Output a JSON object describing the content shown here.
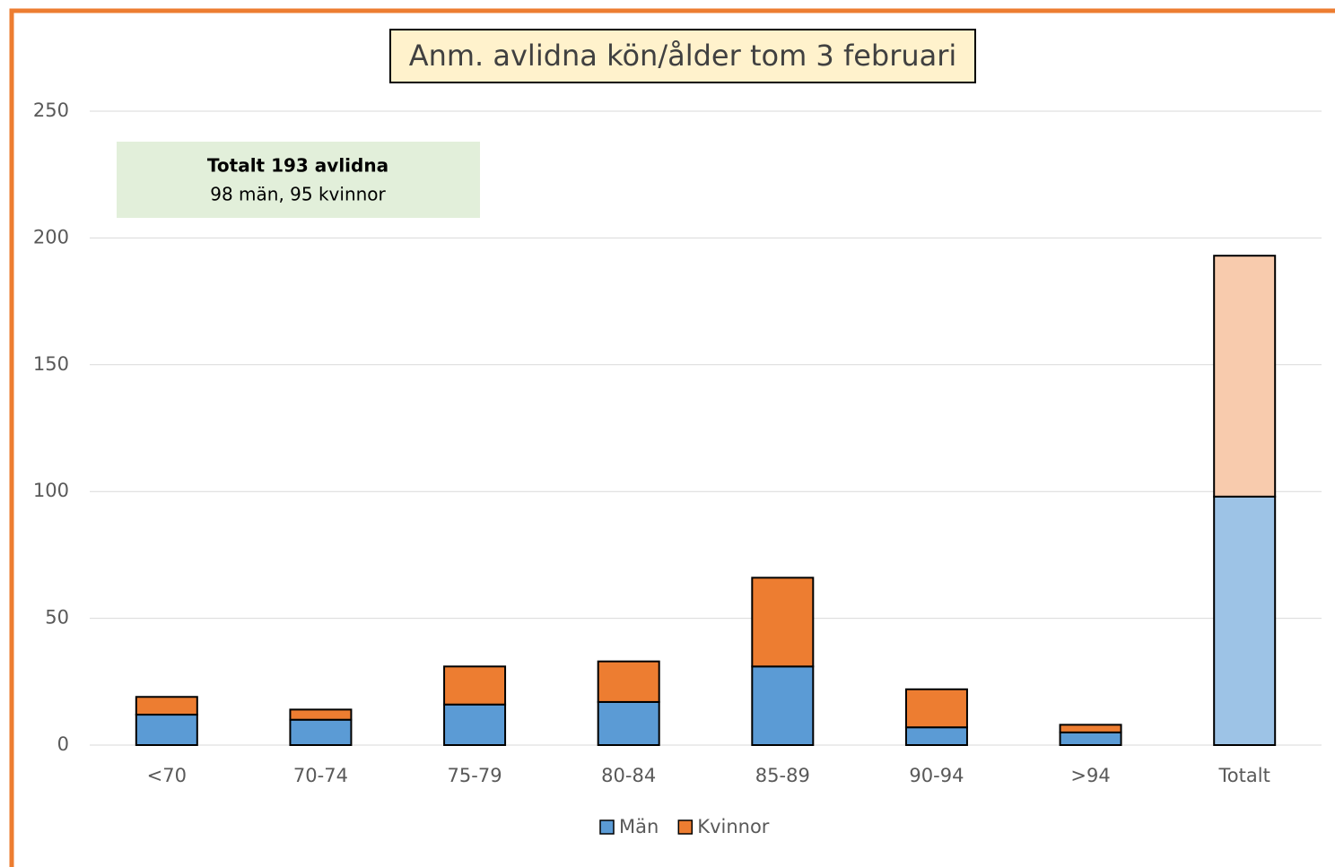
{
  "chart_data": {
    "type": "stacked_bar",
    "title": "Anm. avlidna kön/ålder tom 3 februari",
    "annotations": [
      "Totalt 193 avlidna",
      "98 män, 95 kvinnor"
    ],
    "categories": [
      "<70",
      "70-74",
      "75-79",
      "80-84",
      "85-89",
      "90-94",
      ">94",
      "Totalt"
    ],
    "series": [
      {
        "name": "Män",
        "color": "#5b9bd5",
        "colors": [
          "#5b9bd5",
          "#5b9bd5",
          "#5b9bd5",
          "#5b9bd5",
          "#5b9bd5",
          "#5b9bd5",
          "#5b9bd5",
          "#9dc3e6"
        ],
        "values": [
          12,
          10,
          16,
          17,
          31,
          7,
          5,
          98
        ]
      },
      {
        "name": "Kvinnor",
        "color": "#ed7d31",
        "colors": [
          "#ed7d31",
          "#ed7d31",
          "#ed7d31",
          "#ed7d31",
          "#ed7d31",
          "#ed7d31",
          "#ed7d31",
          "#f8cbad"
        ],
        "values": [
          7,
          4,
          15,
          16,
          35,
          15,
          3,
          95
        ]
      }
    ],
    "ylim": [
      0,
      250
    ],
    "yticks": [
      0,
      50,
      100,
      150,
      200,
      250
    ],
    "grid": true,
    "legend": "bottom"
  }
}
